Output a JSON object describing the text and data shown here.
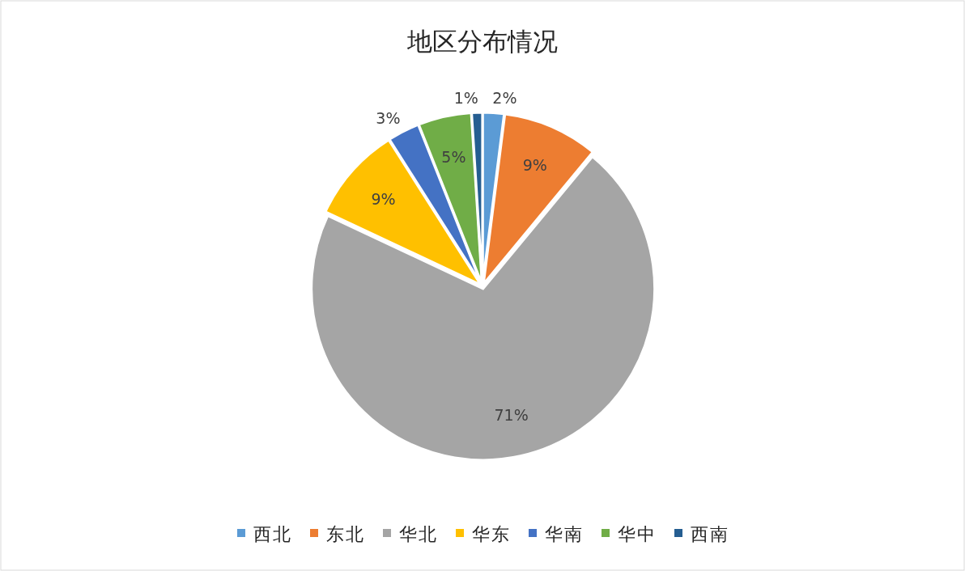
{
  "chart_data": {
    "type": "pie",
    "title": "地区分布情况",
    "categories": [
      "西北",
      "东北",
      "华北",
      "华东",
      "华南",
      "华中",
      "西南"
    ],
    "values": [
      2,
      9,
      71,
      9,
      3,
      5,
      1
    ],
    "colors": [
      "#5b9bd5",
      "#ed7d31",
      "#a5a5a5",
      "#ffc000",
      "#4472c4",
      "#70ad47",
      "#255e91"
    ],
    "value_labels": [
      "2%",
      "9%",
      "71%",
      "9%",
      "3%",
      "5%",
      "1%"
    ],
    "legend": "bottom"
  }
}
